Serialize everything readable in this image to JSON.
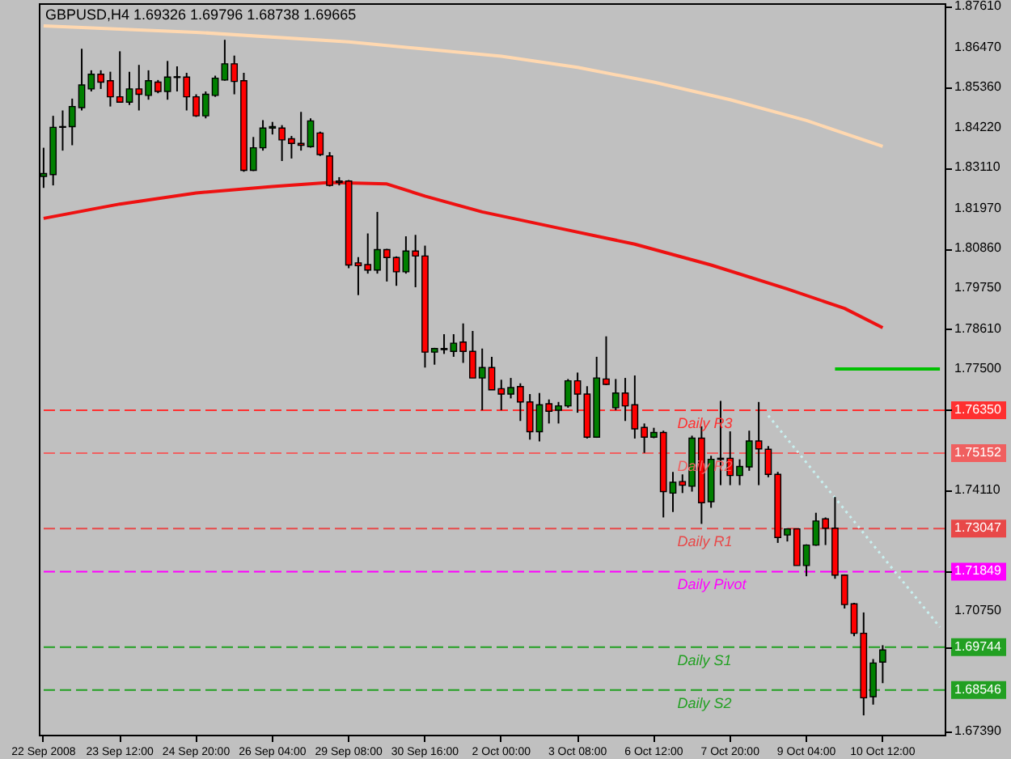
{
  "chart_data": {
    "type": "candlestick",
    "title": "GBPUSD,H4  1.69326 1.69796 1.68738 1.69665",
    "categories": [
      "22 Sep 2008",
      null,
      null,
      null,
      null,
      null,
      null,
      null,
      "23 Sep 12:00",
      null,
      null,
      null,
      null,
      null,
      null,
      null,
      "24 Sep 20:00",
      null,
      null,
      null,
      null,
      null,
      null,
      null,
      "26 Sep 04:00",
      null,
      null,
      null,
      null,
      null,
      null,
      null,
      "29 Sep 08:00",
      null,
      null,
      null,
      null,
      null,
      null,
      null,
      "30 Sep 16:00",
      null,
      null,
      null,
      null,
      null,
      null,
      null,
      "2 Oct 00:00",
      null,
      null,
      null,
      null,
      null,
      null,
      null,
      "3 Oct 08:00",
      null,
      null,
      null,
      null,
      null,
      null,
      null,
      "6 Oct 12:00",
      null,
      null,
      null,
      null,
      null,
      null,
      null,
      "7 Oct 20:00",
      null,
      null,
      null,
      null,
      null,
      null,
      null,
      "9 Oct 04:00",
      null,
      null,
      null,
      null,
      null,
      null,
      null,
      "10 Oct 12:00",
      null,
      null,
      null,
      null,
      null,
      null
    ],
    "ohlc": [
      [
        1.8287,
        1.8367,
        1.8255,
        1.8295
      ],
      [
        1.8292,
        1.8456,
        1.8262,
        1.8424
      ],
      [
        1.8424,
        1.8471,
        1.8359,
        1.8426
      ],
      [
        1.8426,
        1.8504,
        1.8374,
        1.8482
      ],
      [
        1.8479,
        1.8643,
        1.8471,
        1.8542
      ],
      [
        1.8531,
        1.8583,
        1.8524,
        1.8572
      ],
      [
        1.8572,
        1.8583,
        1.8531,
        1.855
      ],
      [
        1.8554,
        1.8579,
        1.8482,
        1.8509
      ],
      [
        1.8509,
        1.8636,
        1.8494,
        1.8494
      ],
      [
        1.8494,
        1.8579,
        1.8486,
        1.8531
      ],
      [
        1.8531,
        1.8598,
        1.8471,
        1.8516
      ],
      [
        1.8513,
        1.8583,
        1.8501,
        1.8554
      ],
      [
        1.855,
        1.8556,
        1.8519,
        1.8524
      ],
      [
        1.8524,
        1.8609,
        1.8501,
        1.8564
      ],
      [
        1.8563,
        1.8594,
        1.8524,
        1.8565
      ],
      [
        1.8564,
        1.8576,
        1.8471,
        1.8509
      ],
      [
        1.8509,
        1.8516,
        1.8453,
        1.8456
      ],
      [
        1.8456,
        1.8524,
        1.8449,
        1.8516
      ],
      [
        1.8513,
        1.8568,
        1.8509,
        1.8561
      ],
      [
        1.8556,
        1.8668,
        1.8554,
        1.8601
      ],
      [
        1.8601,
        1.8624,
        1.8516,
        1.8552
      ],
      [
        1.8554,
        1.8576,
        1.83,
        1.8304
      ],
      [
        1.8304,
        1.8397,
        1.8302,
        1.8367
      ],
      [
        1.8367,
        1.8444,
        1.8359,
        1.8422
      ],
      [
        1.8422,
        1.8439,
        1.8404,
        1.8426
      ],
      [
        1.8422,
        1.843,
        1.833,
        1.8389
      ],
      [
        1.8392,
        1.84,
        1.8337,
        1.8379
      ],
      [
        1.8379,
        1.8467,
        1.8359,
        1.8374
      ],
      [
        1.837,
        1.8449,
        1.8367,
        1.8442
      ],
      [
        1.8408,
        1.8412,
        1.8344,
        1.8348
      ],
      [
        1.8344,
        1.8355,
        1.8259,
        1.8262
      ],
      [
        1.8274,
        1.8285,
        1.8262,
        1.827
      ],
      [
        1.8274,
        1.8277,
        1.8031,
        1.804
      ],
      [
        1.8046,
        1.8062,
        1.7956,
        1.8038
      ],
      [
        1.8041,
        1.8128,
        1.8016,
        1.8026
      ],
      [
        1.8026,
        1.8188,
        1.8016,
        1.8083
      ],
      [
        1.8083,
        1.8085,
        1.7994,
        1.8061
      ],
      [
        1.8061,
        1.8064,
        1.7982,
        1.8021
      ],
      [
        1.8021,
        1.812,
        1.8016,
        1.8079
      ],
      [
        1.8079,
        1.8124,
        1.7978,
        1.8065
      ],
      [
        1.8065,
        1.8094,
        1.7754,
        1.7797
      ],
      [
        1.7797,
        1.7809,
        1.7762,
        1.7807
      ],
      [
        1.7804,
        1.7847,
        1.7792,
        1.7807
      ],
      [
        1.7799,
        1.7847,
        1.7784,
        1.7822
      ],
      [
        1.7825,
        1.7877,
        1.7767,
        1.7799
      ],
      [
        1.7799,
        1.7856,
        1.7725,
        1.7725
      ],
      [
        1.7725,
        1.7807,
        1.7635,
        1.7754
      ],
      [
        1.7754,
        1.7784,
        1.7692,
        1.7692
      ],
      [
        1.7695,
        1.772,
        1.7635,
        1.768
      ],
      [
        1.768,
        1.7725,
        1.7668,
        1.7698
      ],
      [
        1.7701,
        1.771,
        1.7605,
        1.7658
      ],
      [
        1.7658,
        1.768,
        1.7553,
        1.7575
      ],
      [
        1.7575,
        1.7683,
        1.7548,
        1.765
      ],
      [
        1.7653,
        1.7665,
        1.7598,
        1.7632
      ],
      [
        1.7635,
        1.7658,
        1.7598,
        1.7647
      ],
      [
        1.7647,
        1.7722,
        1.7642,
        1.7717
      ],
      [
        1.7717,
        1.774,
        1.7628,
        1.768
      ],
      [
        1.768,
        1.7702,
        1.7556,
        1.756
      ],
      [
        1.756,
        1.7784,
        1.7558,
        1.7725
      ],
      [
        1.7722,
        1.7841,
        1.7705,
        1.7707
      ],
      [
        1.7642,
        1.7722,
        1.7635,
        1.7683
      ],
      [
        1.7683,
        1.7725,
        1.7605,
        1.7647
      ],
      [
        1.765,
        1.7732,
        1.7556,
        1.7583
      ],
      [
        1.7587,
        1.7598,
        1.7516,
        1.756
      ],
      [
        1.756,
        1.7586,
        1.7557,
        1.7573
      ],
      [
        1.7573,
        1.7578,
        1.7336,
        1.7408
      ],
      [
        1.7404,
        1.7463,
        1.7351,
        1.7434
      ],
      [
        1.7436,
        1.7456,
        1.7404,
        1.7426
      ],
      [
        1.7423,
        1.7564,
        1.7408,
        1.7557
      ],
      [
        1.7557,
        1.759,
        1.7318,
        1.7377
      ],
      [
        1.738,
        1.7508,
        1.7363,
        1.7498
      ],
      [
        1.7498,
        1.7661,
        1.7426,
        1.7501
      ],
      [
        1.7501,
        1.7576,
        1.7426,
        1.7453
      ],
      [
        1.7453,
        1.7498,
        1.7426,
        1.7478
      ],
      [
        1.7477,
        1.7578,
        1.7466,
        1.7549
      ],
      [
        1.7549,
        1.7658,
        1.7426,
        1.7527
      ],
      [
        1.7526,
        1.7535,
        1.7448,
        1.7456
      ],
      [
        1.7456,
        1.7463,
        1.7265,
        1.728
      ],
      [
        1.7287,
        1.7306,
        1.7269,
        1.7304
      ],
      [
        1.7304,
        1.7305,
        1.7202,
        1.7202
      ],
      [
        1.7202,
        1.7261,
        1.7172,
        1.7259
      ],
      [
        1.7259,
        1.7349,
        1.7257,
        1.7326
      ],
      [
        1.7332,
        1.7336,
        1.7259,
        1.7306
      ],
      [
        1.7306,
        1.7393,
        1.7165,
        1.7175
      ],
      [
        1.7175,
        1.7177,
        1.7082,
        1.7093
      ],
      [
        1.7095,
        1.7098,
        1.7005,
        1.7013
      ],
      [
        1.7013,
        1.7071,
        1.6784,
        1.6833
      ],
      [
        1.6836,
        1.6941,
        1.6814,
        1.693
      ],
      [
        1.69326,
        1.69796,
        1.68738,
        1.69665
      ],
      null,
      null,
      null,
      null,
      null,
      null
    ],
    "colors": [
      "#008000",
      "#008000",
      "#008000",
      "#008000",
      "#008000",
      "#008000",
      "#ff0000",
      "#ff0000",
      "#ff0000",
      "#008000",
      "#ff0000",
      "#008000",
      "#ff0000",
      "#008000",
      "#008000",
      "#ff0000",
      "#ff0000",
      "#008000",
      "#008000",
      "#008000",
      "#ff0000",
      "#ff0000",
      "#008000",
      "#008000",
      "#008000",
      "#ff0000",
      "#ff0000",
      "#ff0000",
      "#008000",
      "#ff0000",
      "#ff0000",
      "#ff0000",
      "#ff0000",
      "#ff0000",
      "#ff0000",
      "#008000",
      "#ff0000",
      "#ff0000",
      "#008000",
      "#ff0000",
      "#ff0000",
      "#008000",
      "#008000",
      "#008000",
      "#ff0000",
      "#ff0000",
      "#008000",
      "#ff0000",
      "#ff0000",
      "#008000",
      "#ff0000",
      "#ff0000",
      "#008000",
      "#ff0000",
      "#008000",
      "#008000",
      "#ff0000",
      "#ff0000",
      "#008000",
      "#ff0000",
      "#008000",
      "#ff0000",
      "#ff0000",
      "#ff0000",
      "#008000",
      "#ff0000",
      "#008000",
      "#ff0000",
      "#008000",
      "#ff0000",
      "#008000",
      "#008000",
      "#ff0000",
      "#008000",
      "#008000",
      "#ff0000",
      "#ff0000",
      "#ff0000",
      "#008000",
      "#ff0000",
      "#008000",
      "#008000",
      "#ff0000",
      "#ff0000",
      "#ff0000",
      "#ff0000",
      "#ff0000",
      "#008000",
      "#008000",
      null,
      null,
      null,
      null,
      null,
      null
    ],
    "series": [
      {
        "type": "line",
        "color": "#ffd8b0",
        "line_style": "solid",
        "values": [
          1.8707,
          null,
          null,
          null,
          null,
          null,
          null,
          null,
          null,
          null,
          null,
          null,
          null,
          null,
          null,
          null,
          1.8689,
          null,
          null,
          null,
          null,
          null,
          null,
          null,
          null,
          null,
          null,
          null,
          null,
          null,
          null,
          null,
          1.8662,
          null,
          null,
          null,
          null,
          null,
          null,
          null,
          null,
          null,
          null,
          null,
          null,
          null,
          null,
          null,
          1.8622,
          null,
          null,
          null,
          null,
          null,
          null,
          null,
          1.8591,
          null,
          null,
          null,
          null,
          null,
          null,
          null,
          1.855,
          null,
          null,
          null,
          null,
          null,
          null,
          null,
          1.8501,
          null,
          null,
          null,
          null,
          null,
          null,
          null,
          1.8443,
          null,
          null,
          null,
          null,
          null,
          null,
          null,
          1.8371,
          null,
          null,
          null,
          null,
          null,
          null
        ]
      },
      {
        "type": "line",
        "color": "#ee1111",
        "line_style": "solid",
        "values": [
          1.817,
          null,
          null,
          null,
          null,
          null,
          null,
          null,
          1.821,
          null,
          null,
          null,
          null,
          null,
          null,
          null,
          1.8241,
          null,
          null,
          null,
          null,
          null,
          null,
          null,
          1.8259,
          null,
          null,
          null,
          null,
          null,
          1.827,
          null,
          null,
          null,
          null,
          null,
          1.8266,
          null,
          null,
          null,
          1.8232,
          null,
          null,
          null,
          null,
          null,
          1.8188,
          null,
          null,
          null,
          null,
          null,
          null,
          null,
          1.8143,
          null,
          null,
          null,
          null,
          null,
          null,
          null,
          1.8098,
          null,
          null,
          null,
          null,
          null,
          null,
          null,
          1.804,
          null,
          null,
          null,
          null,
          null,
          null,
          null,
          1.7973,
          null,
          null,
          null,
          null,
          null,
          1.7919,
          null,
          null,
          null,
          1.7865,
          null,
          null,
          null,
          null,
          null,
          null
        ]
      },
      {
        "type": "line",
        "color": "#c8f0f0",
        "line_style": "dotted",
        "values": [
          null,
          null,
          null,
          null,
          null,
          null,
          null,
          null,
          null,
          null,
          null,
          null,
          null,
          null,
          null,
          null,
          null,
          null,
          null,
          null,
          null,
          null,
          null,
          null,
          null,
          null,
          null,
          null,
          null,
          null,
          null,
          null,
          null,
          null,
          null,
          null,
          null,
          null,
          null,
          null,
          null,
          null,
          null,
          null,
          null,
          null,
          null,
          null,
          null,
          null,
          null,
          null,
          null,
          null,
          null,
          null,
          null,
          null,
          null,
          null,
          null,
          null,
          null,
          null,
          null,
          null,
          null,
          null,
          null,
          null,
          null,
          null,
          null,
          null,
          null,
          null,
          1.762,
          null,
          null,
          null,
          null,
          null,
          null,
          null,
          null,
          null,
          null,
          null,
          null,
          null,
          null,
          null,
          null,
          null,
          1.703
        ]
      },
      {
        "type": "line",
        "color": "#00c000",
        "line_style": "solid",
        "values": [
          null,
          null,
          null,
          null,
          null,
          null,
          null,
          null,
          null,
          null,
          null,
          null,
          null,
          null,
          null,
          null,
          null,
          null,
          null,
          null,
          null,
          null,
          null,
          null,
          null,
          null,
          null,
          null,
          null,
          null,
          null,
          null,
          null,
          null,
          null,
          null,
          null,
          null,
          null,
          null,
          null,
          null,
          null,
          null,
          null,
          null,
          null,
          null,
          null,
          null,
          null,
          null,
          null,
          null,
          null,
          null,
          null,
          null,
          null,
          null,
          null,
          null,
          null,
          null,
          null,
          null,
          null,
          null,
          null,
          null,
          null,
          null,
          null,
          null,
          null,
          null,
          null,
          null,
          null,
          null,
          null,
          null,
          null,
          1.775,
          null,
          null,
          null,
          null,
          null,
          null,
          null,
          null,
          null,
          null,
          1.775
        ]
      }
    ],
    "ref_lines": [
      {
        "axis": "y",
        "value": 1.7635,
        "label": "Daily R3",
        "color": "#ff3030",
        "line_style": "dashed"
      },
      {
        "axis": "y",
        "value": 1.75152,
        "label": "Daily R2",
        "color": "#f06060",
        "line_style": "dashed"
      },
      {
        "axis": "y",
        "value": 1.73047,
        "label": "Daily R1",
        "color": "#e84848",
        "line_style": "dashed"
      },
      {
        "axis": "y",
        "value": 1.71849,
        "label": "Daily Pivot",
        "color": "#ff00ff",
        "line_style": "dashed"
      },
      {
        "axis": "y",
        "value": 1.69744,
        "label": "Daily S1",
        "color": "#22a022",
        "line_style": "dashed"
      },
      {
        "axis": "y",
        "value": 1.68546,
        "label": "Daily S2",
        "color": "#22a022",
        "line_style": "dashed"
      }
    ],
    "ylim": [
      1.673,
      1.877
    ],
    "yticks": [
      {
        "value": 1.8761,
        "label": "1.87610"
      },
      {
        "value": 1.8647,
        "label": "1.86470"
      },
      {
        "value": 1.8536,
        "label": "1.85360"
      },
      {
        "value": 1.8422,
        "label": "1.84220"
      },
      {
        "value": 1.8311,
        "label": "1.83110"
      },
      {
        "value": 1.8197,
        "label": "1.81970"
      },
      {
        "value": 1.8086,
        "label": "1.80860"
      },
      {
        "value": 1.7975,
        "label": "1.79750"
      },
      {
        "value": 1.7861,
        "label": "1.78610"
      },
      {
        "value": 1.775,
        "label": "1.77500"
      },
      {
        "value": 1.7635,
        "label": "1.76350"
      },
      {
        "value": 1.75152,
        "label": "1.75152"
      },
      {
        "value": 1.7411,
        "label": "1.74110"
      },
      {
        "value": 1.73047,
        "label": "1.73047"
      },
      {
        "value": 1.71849,
        "label": "1.71849"
      },
      {
        "value": 1.7075,
        "label": "1.70750"
      },
      {
        "value": 1.69744,
        "label": "1.69744"
      },
      {
        "value": 1.68546,
        "label": "1.68546"
      },
      {
        "value": 1.6739,
        "label": "1.67390"
      }
    ]
  }
}
